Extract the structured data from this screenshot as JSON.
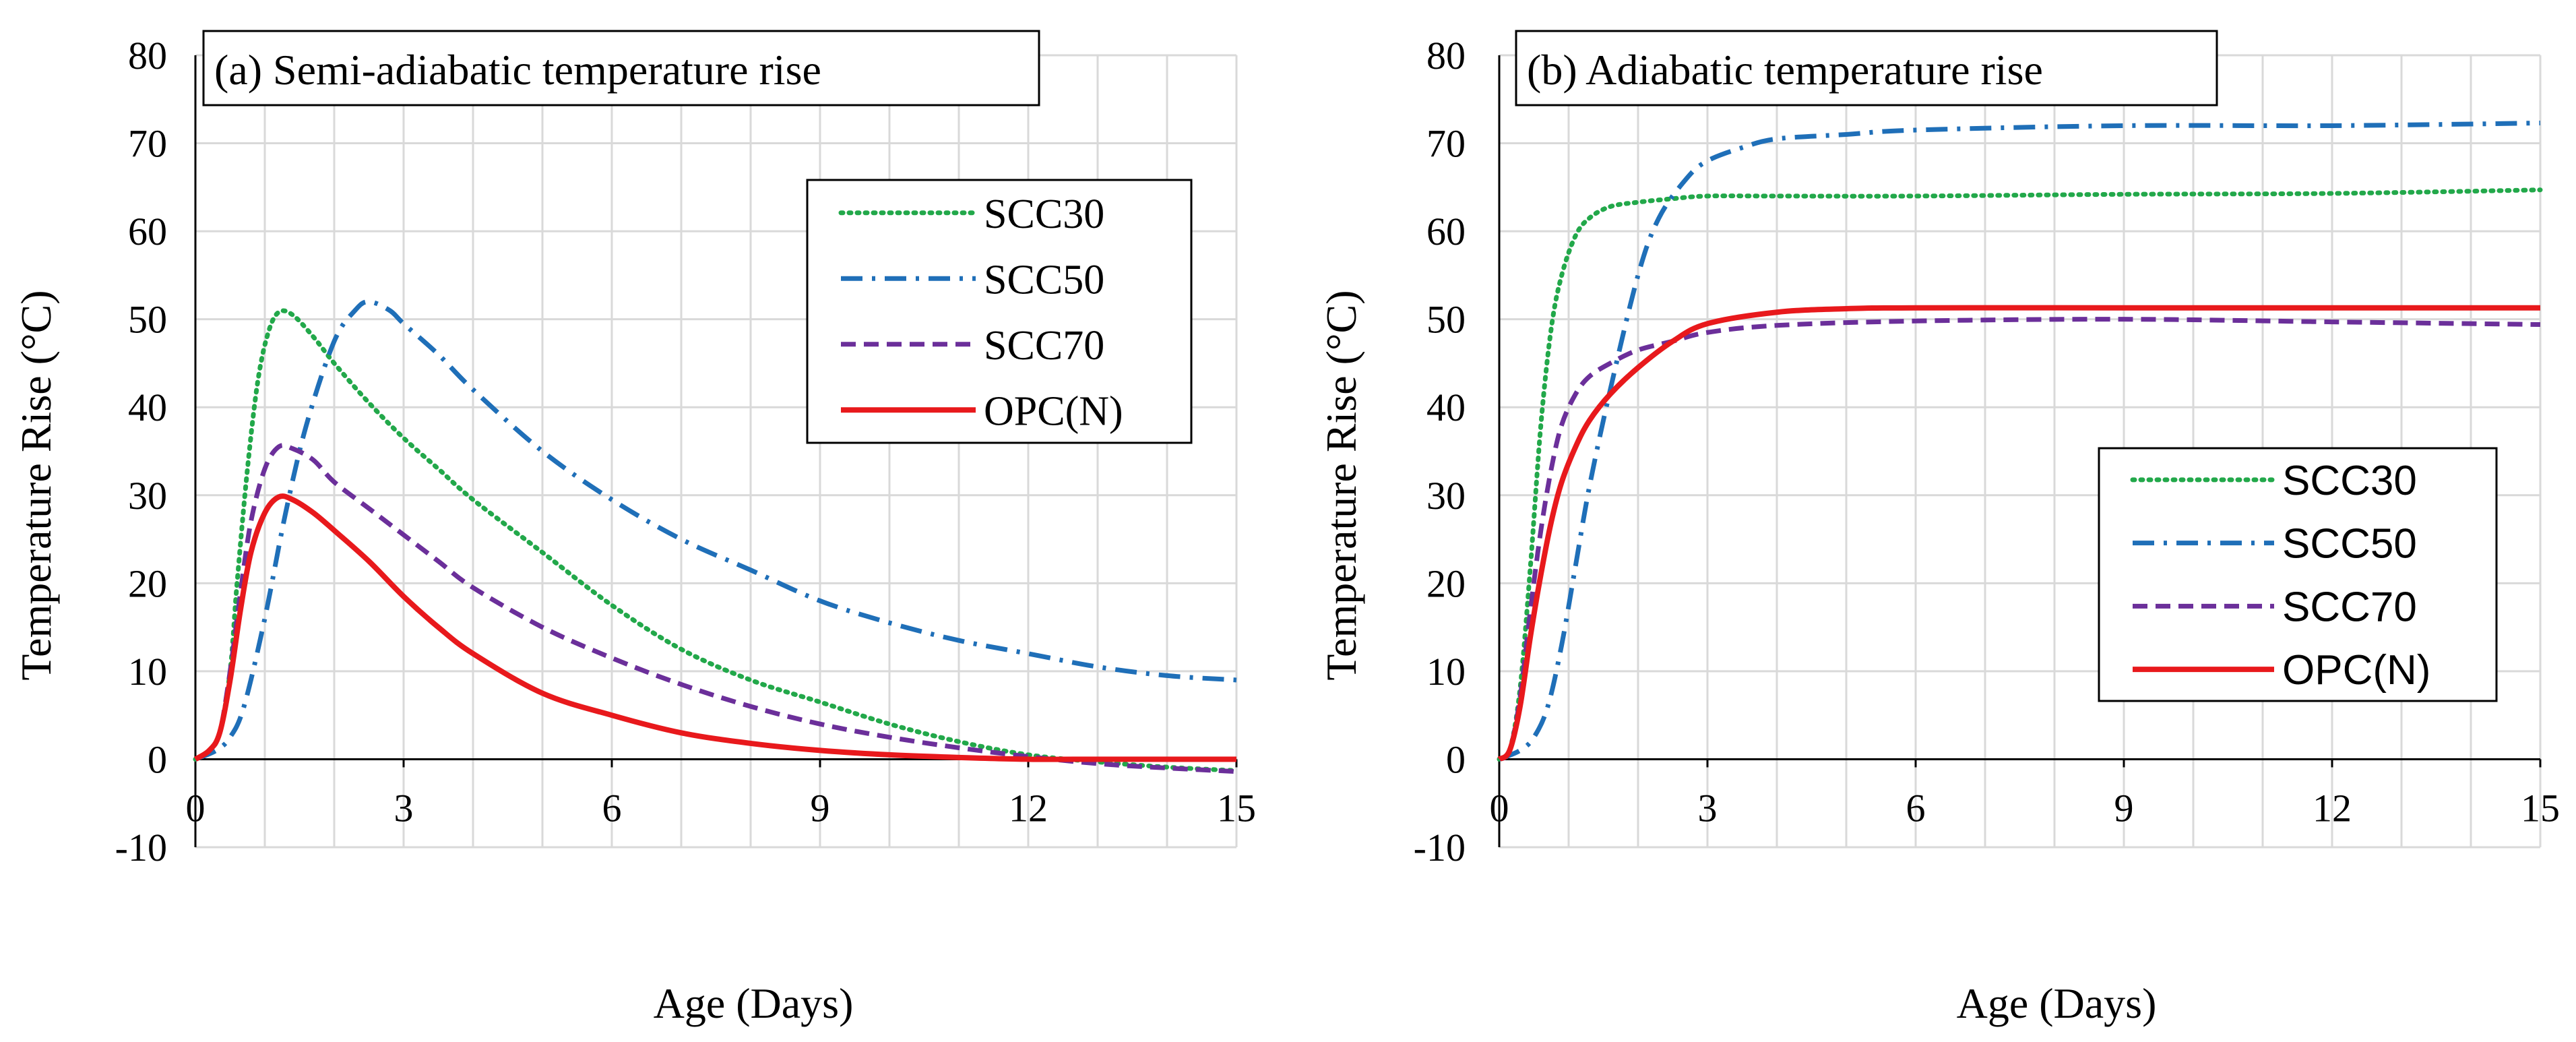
{
  "chart_data": [
    {
      "type": "line",
      "panel": "a",
      "title": "(a) Semi-adiabatic temperature rise",
      "xlabel": "Age (Days)",
      "ylabel": "Temperature Rise (°C)",
      "xlim": [
        0,
        15
      ],
      "ylim": [
        -10,
        80
      ],
      "xticks": [
        "0",
        "3",
        "6",
        "9",
        "12",
        "15"
      ],
      "yticks": [
        "-10",
        "0",
        "10",
        "20",
        "30",
        "40",
        "50",
        "60",
        "70",
        "80"
      ],
      "grid": true,
      "legend_position": "top-right",
      "series": [
        {
          "name": "SCC30",
          "color": "#22a84a",
          "dash": "dotted",
          "x": [
            0,
            0.2,
            0.35,
            0.5,
            0.6,
            0.75,
            0.9,
            1.05,
            1.2,
            1.4,
            1.7,
            2,
            2.5,
            3,
            3.5,
            4,
            5,
            6,
            7,
            8,
            9,
            10,
            11,
            12,
            13,
            14,
            15
          ],
          "y": [
            0,
            1,
            3,
            10,
            20,
            33,
            43,
            48.5,
            50.8,
            50.5,
            48,
            45,
            40.5,
            36.5,
            33,
            29.5,
            23.5,
            17.5,
            12.5,
            9,
            6.5,
            4,
            2,
            0.5,
            -0.3,
            -0.9,
            -1.3
          ]
        },
        {
          "name": "SCC50",
          "color": "#1f6fb8",
          "dash": "dash-dot",
          "x": [
            0,
            0.3,
            0.5,
            0.7,
            1,
            1.3,
            1.6,
            2,
            2.3,
            2.5,
            2.8,
            3,
            3.5,
            4,
            5,
            6,
            7,
            8,
            9,
            10,
            11,
            12,
            13,
            14,
            15
          ],
          "y": [
            0,
            1,
            2.5,
            6,
            16,
            28,
            38,
            47.5,
            51,
            52,
            51,
            49.5,
            46,
            42,
            35,
            29.5,
            25,
            21.5,
            18,
            15.5,
            13.5,
            12,
            10.5,
            9.5,
            9
          ]
        },
        {
          "name": "SCC70",
          "color": "#6b2f9a",
          "dash": "dashed",
          "x": [
            0,
            0.2,
            0.35,
            0.5,
            0.65,
            0.8,
            1,
            1.2,
            1.4,
            1.7,
            2,
            2.5,
            3,
            3.5,
            4,
            5,
            6,
            7,
            8,
            9,
            10,
            11,
            12,
            13,
            14,
            15
          ],
          "y": [
            0,
            1,
            3,
            10,
            19,
            27,
            33,
            35.5,
            35.3,
            34,
            31.5,
            28.5,
            25.5,
            22.5,
            19.5,
            15,
            11.5,
            8.5,
            6,
            4,
            2.5,
            1.3,
            0.3,
            -0.5,
            -1,
            -1.4
          ]
        },
        {
          "name": "OPC(N)",
          "color": "#e8191c",
          "dash": "solid",
          "x": [
            0,
            0.2,
            0.35,
            0.5,
            0.65,
            0.8,
            1,
            1.2,
            1.4,
            1.7,
            2,
            2.5,
            3,
            3.5,
            4,
            5,
            6,
            7,
            8,
            9,
            10,
            11,
            12,
            13,
            14,
            15
          ],
          "y": [
            0,
            1,
            3,
            9,
            17,
            23.5,
            28,
            29.8,
            29.5,
            28,
            26,
            22.5,
            18.5,
            15,
            12,
            7.5,
            5,
            3,
            1.8,
            1,
            0.5,
            0.2,
            0,
            0,
            0,
            0
          ]
        }
      ]
    },
    {
      "type": "line",
      "panel": "b",
      "title": "(b) Adiabatic temperature rise",
      "xlabel": "Age (Days)",
      "ylabel": "Temperature Rise (°C)",
      "xlim": [
        0,
        15
      ],
      "ylim": [
        -10,
        80
      ],
      "xticks": [
        "0",
        "3",
        "6",
        "9",
        "12",
        "15"
      ],
      "yticks": [
        "-10",
        "0",
        "10",
        "20",
        "30",
        "40",
        "50",
        "60",
        "70",
        "80"
      ],
      "grid": true,
      "legend_position": "center-right",
      "series": [
        {
          "name": "SCC30",
          "color": "#22a84a",
          "dash": "dotted",
          "x": [
            0,
            0.15,
            0.3,
            0.45,
            0.6,
            0.75,
            0.9,
            1.1,
            1.3,
            1.6,
            2,
            2.5,
            3,
            4,
            6,
            9,
            12,
            15
          ],
          "y": [
            0,
            1,
            8,
            22,
            38,
            49,
            55,
            59.5,
            61.5,
            62.8,
            63.3,
            63.7,
            64,
            64,
            64,
            64.2,
            64.3,
            64.7
          ]
        },
        {
          "name": "SCC50",
          "color": "#1f6fb8",
          "dash": "dash-dot",
          "x": [
            0,
            0.3,
            0.5,
            0.7,
            0.9,
            1.1,
            1.3,
            1.6,
            2,
            2.3,
            2.7,
            3,
            3.5,
            4,
            5,
            6,
            9,
            12,
            15
          ],
          "y": [
            0,
            1,
            2.5,
            6,
            13,
            22,
            31,
            42,
            55,
            61.5,
            66,
            68,
            69.5,
            70.5,
            71,
            71.5,
            72,
            72,
            72.3
          ]
        },
        {
          "name": "SCC70",
          "color": "#6b2f9a",
          "dash": "dashed",
          "x": [
            0,
            0.15,
            0.3,
            0.45,
            0.6,
            0.75,
            0.9,
            1.1,
            1.3,
            1.6,
            2,
            2.5,
            3,
            4,
            6,
            9,
            12,
            15
          ],
          "y": [
            0,
            1,
            7,
            17,
            26,
            33,
            38,
            41.5,
            43.5,
            45,
            46.5,
            47.5,
            48.5,
            49.3,
            49.8,
            50,
            49.7,
            49.4
          ]
        },
        {
          "name": "OPC(N)",
          "color": "#e8191c",
          "dash": "solid",
          "x": [
            0,
            0.15,
            0.3,
            0.45,
            0.6,
            0.75,
            0.9,
            1.1,
            1.3,
            1.6,
            2,
            2.5,
            3,
            4,
            5,
            6,
            9,
            12,
            15
          ],
          "y": [
            0,
            1,
            6,
            14,
            21,
            27,
            31.5,
            35.5,
            38.5,
            41.5,
            44.5,
            47.5,
            49.5,
            50.8,
            51.2,
            51.3,
            51.3,
            51.3,
            51.3
          ]
        }
      ]
    }
  ]
}
